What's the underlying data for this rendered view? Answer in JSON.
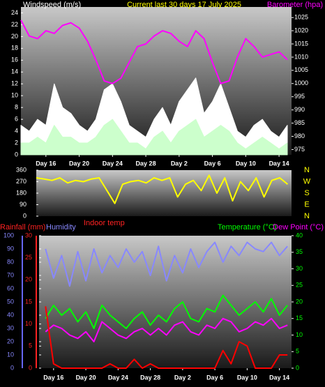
{
  "chart_data": [
    {
      "type": "line",
      "title": "Current last 30 days 17 July 2025",
      "ylabel": "Windspeed (m/s)",
      "y2label": "Barometer (hpa)",
      "x": [
        0,
        1,
        2,
        3,
        4,
        5,
        6,
        7,
        8,
        9,
        10,
        11,
        12,
        13,
        14,
        15,
        16,
        17,
        18,
        19,
        20,
        21,
        22,
        23,
        24,
        25,
        26,
        27,
        28,
        29,
        30,
        31,
        32
      ],
      "xlim": [
        0,
        32.5
      ],
      "xticks": [
        {
          "value": 3,
          "label": "Day 16"
        },
        {
          "value": 7,
          "label": "Day 20"
        },
        {
          "value": 11,
          "label": "Day 24"
        },
        {
          "value": 15,
          "label": "Day 28"
        },
        {
          "value": 19,
          "label": "Day 2"
        },
        {
          "value": 23,
          "label": "Day 6"
        },
        {
          "value": 27,
          "label": "Day 10"
        },
        {
          "value": 31,
          "label": "Day 14"
        }
      ],
      "ylim": [
        0,
        25
      ],
      "yticks": [
        0,
        2,
        4,
        6,
        8,
        10,
        12,
        14,
        16,
        18,
        20,
        22,
        24
      ],
      "y2lim": [
        973,
        1029
      ],
      "y2ticks": [
        975,
        980,
        985,
        990,
        995,
        1000,
        1005,
        1010,
        1015,
        1020,
        1025
      ],
      "series": [
        {
          "color": "#ffffff",
          "fill": true,
          "values": [
            5,
            4,
            6,
            5,
            12,
            8,
            7,
            5,
            4,
            6,
            11,
            12,
            9,
            5,
            4,
            3,
            6,
            8,
            5,
            9,
            11,
            13,
            7,
            9,
            12,
            8,
            4,
            3,
            5,
            6,
            4,
            3,
            5
          ]
        },
        {
          "color": "#ccffcc",
          "fill": true,
          "values": [
            2,
            2,
            3,
            2,
            5,
            3,
            3,
            2,
            2,
            3,
            5,
            6,
            4,
            2,
            2,
            1,
            3,
            4,
            2,
            4,
            5,
            6,
            3,
            4,
            5,
            4,
            2,
            1,
            2,
            3,
            2,
            1,
            2
          ]
        },
        {
          "color": "#ff00ff",
          "fill": false,
          "axis": "y2",
          "values": [
            1024,
            1018,
            1017,
            1020,
            1019,
            1022,
            1023,
            1021,
            1016,
            1009,
            1001,
            1000,
            1002,
            1008,
            1014,
            1015,
            1018,
            1020,
            1019,
            1016,
            1014,
            1020,
            1017,
            1008,
            1000,
            1001,
            1010,
            1017,
            1014,
            1010,
            1011,
            1012,
            1009
          ]
        }
      ]
    },
    {
      "type": "line",
      "x": [
        0,
        1,
        2,
        3,
        4,
        5,
        6,
        7,
        8,
        9,
        10,
        11,
        12,
        13,
        14,
        15,
        16,
        17,
        18,
        19,
        20,
        21,
        22,
        23,
        24,
        25,
        26,
        27,
        28,
        29,
        30,
        31,
        32
      ],
      "xlim": [
        0,
        32.5
      ],
      "ylim": [
        0,
        360
      ],
      "yticks": [
        0,
        90,
        180,
        270,
        360
      ],
      "compass": [
        "N",
        "W",
        "S",
        "E",
        "N"
      ],
      "series": [
        {
          "color": "#ffff00",
          "fill": false,
          "values": [
            300,
            290,
            280,
            300,
            260,
            280,
            270,
            290,
            300,
            200,
            100,
            250,
            270,
            280,
            260,
            300,
            280,
            300,
            150,
            250,
            280,
            200,
            320,
            180,
            300,
            120,
            270,
            200,
            300,
            150,
            280,
            300,
            250
          ]
        }
      ]
    },
    {
      "type": "line",
      "ylabel": "Humidity",
      "y3label": "Rainfall (mm)",
      "y2label": "Temperature (°C)",
      "y4label": "Dew Point (°C)",
      "note": "Indoor temp",
      "x": [
        2,
        3,
        4,
        5,
        6,
        7,
        8,
        9,
        10,
        11,
        12,
        13,
        14,
        15,
        16,
        17,
        18,
        19,
        20,
        21,
        22,
        23,
        24,
        25,
        26,
        27,
        28,
        29,
        30,
        31,
        32
      ],
      "xlim": [
        1.2,
        32.5
      ],
      "xticks": [
        {
          "value": 3,
          "label": "Day 16"
        },
        {
          "value": 7,
          "label": "Day 20"
        },
        {
          "value": 11,
          "label": "Day 24"
        },
        {
          "value": 15,
          "label": "Day 28"
        },
        {
          "value": 19,
          "label": "Day 2"
        },
        {
          "value": 23,
          "label": "Day 6"
        },
        {
          "value": 27,
          "label": "Day 10"
        },
        {
          "value": 31,
          "label": "Day 14"
        }
      ],
      "ylim": [
        0,
        100
      ],
      "yticks": [
        0,
        10,
        20,
        30,
        40,
        50,
        60,
        70,
        80,
        90,
        100
      ],
      "y2lim": [
        0,
        40
      ],
      "y2ticks": [
        0,
        5,
        10,
        15,
        20,
        25,
        30,
        35,
        40
      ],
      "y3lim": [
        0,
        30
      ],
      "y3ticks": [
        0,
        5,
        10,
        15,
        20,
        25,
        30
      ],
      "series": [
        {
          "color": "#8888ff",
          "fill": false,
          "values": [
            90,
            68,
            85,
            62,
            88,
            66,
            90,
            72,
            85,
            76,
            90,
            80,
            88,
            70,
            92,
            66,
            85,
            72,
            90,
            76,
            88,
            95,
            80,
            92,
            85,
            95,
            90,
            88,
            95,
            85,
            92
          ]
        },
        {
          "color": "#00ff00",
          "fill": false,
          "axis": "y2",
          "values": [
            15,
            19,
            16,
            18,
            14,
            17,
            12,
            19,
            16,
            14,
            12,
            15,
            17,
            13,
            16,
            14,
            18,
            20,
            15,
            14,
            18,
            17,
            22,
            19,
            16,
            18,
            20,
            17,
            21,
            16,
            19
          ]
        },
        {
          "color": "#ff00ff",
          "fill": false,
          "axis": "y2",
          "values": [
            11,
            13,
            12,
            10,
            9,
            11,
            8,
            14,
            12,
            10,
            9,
            11,
            12,
            10,
            12,
            10,
            13,
            14,
            11,
            10,
            13,
            12,
            15,
            14,
            11,
            12,
            14,
            13,
            15,
            12,
            13
          ]
        },
        {
          "color": "#ff0000",
          "fill": false,
          "axis": "y3",
          "values": [
            14,
            1,
            0,
            0,
            0,
            0,
            0,
            0,
            1,
            0,
            0,
            2,
            0,
            1,
            0,
            0,
            0,
            0,
            0,
            0,
            0,
            0,
            4,
            1,
            6,
            5,
            0,
            0,
            0,
            3,
            3
          ]
        }
      ]
    }
  ]
}
